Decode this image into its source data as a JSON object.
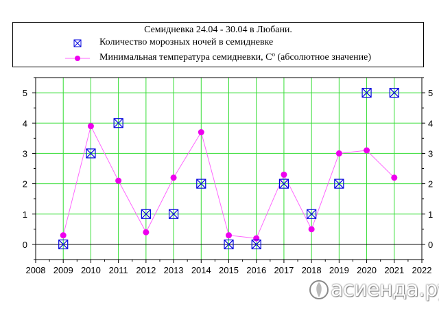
{
  "legend": {
    "title": "Семидневка 24.04 - 30.04 в Любани.",
    "series1_label": "Количество морозных ночей в семидневке",
    "series2_label_main": "Минимальная температура семидневки, С",
    "series2_label_sup": "о",
    "series2_label_tail": " (абсолютное значение)"
  },
  "watermark": {
    "text": "асиенда.ру"
  },
  "colors": {
    "grid": "#33dd33",
    "frost_marker": "#0000dd",
    "temp_line": "#ff66ff",
    "temp_marker": "#ee00ee"
  },
  "chart_data": {
    "type": "scatter",
    "title": "Семидневка 24.04 - 30.04 в Любани.",
    "xlim": [
      2008,
      2022
    ],
    "ylim": [
      -0.5,
      5.5
    ],
    "x_ticks": [
      2008,
      2009,
      2010,
      2011,
      2012,
      2013,
      2014,
      2015,
      2016,
      2017,
      2018,
      2019,
      2020,
      2021,
      2022
    ],
    "y_ticks": [
      0,
      1,
      2,
      3,
      4,
      5
    ],
    "y_ticks_right": [
      0,
      1,
      2,
      3,
      4,
      5
    ],
    "grid": true,
    "legend_position": "top",
    "series": [
      {
        "name": "Количество морозных ночей в семидневке",
        "style": "markers",
        "x": [
          2009,
          2010,
          2011,
          2012,
          2013,
          2014,
          2015,
          2016,
          2017,
          2018,
          2019,
          2020,
          2021
        ],
        "y": [
          0,
          3,
          4,
          1,
          1,
          2,
          0,
          0,
          2,
          1,
          2,
          5,
          5
        ]
      },
      {
        "name": "Минимальная температура семидневки, С° (абсолютное значение)",
        "style": "line+markers",
        "x": [
          2009,
          2010,
          2011,
          2012,
          2013,
          2014,
          2015,
          2016,
          2017,
          2018,
          2019,
          2020,
          2021
        ],
        "y": [
          0.3,
          3.9,
          2.1,
          0.4,
          2.2,
          3.7,
          0.3,
          0.2,
          2.3,
          0.5,
          3.0,
          3.1,
          2.2
        ]
      }
    ]
  }
}
